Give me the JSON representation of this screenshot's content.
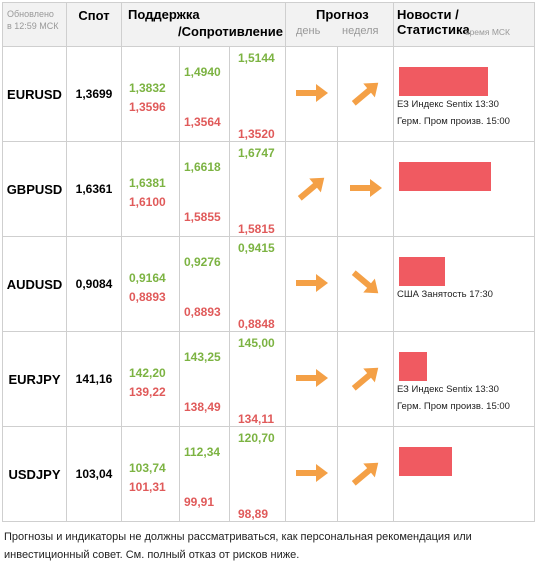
{
  "header": {
    "updated_line1": "Обновлено",
    "updated_line2": "в 12:59 МСК",
    "spot": "Спот",
    "support": "Поддержка",
    "resistance": "/Сопротивление",
    "forecast": "Прогноз",
    "day": "день",
    "week": "неделя",
    "news": "Новости / Статистика",
    "news_sub": "время МСК"
  },
  "rows": [
    {
      "symbol": "EURUSD",
      "spot": "1,3699",
      "s1": "1,3832",
      "s2": "1,3596",
      "m1": "1,4940",
      "m2": "1,3564",
      "h1": "1,5144",
      "h2": "1,3520",
      "day_dir": "right",
      "week_dir": "up-right",
      "bar_pct": 0.85,
      "news": [
        "ЕЗ Индекс Sentix 13:30",
        "Герм. Пром произв. 15:00"
      ]
    },
    {
      "symbol": "GBPUSD",
      "spot": "1,6361",
      "s1": "1,6381",
      "s2": "1,6100",
      "m1": "1,6618",
      "m2": "1,5855",
      "h1": "1,6747",
      "h2": "1,5815",
      "day_dir": "up-right",
      "week_dir": "right",
      "bar_pct": 0.88,
      "news": []
    },
    {
      "symbol": "AUDUSD",
      "spot": "0,9084",
      "s1": "0,9164",
      "s2": "0,8893",
      "m1": "0,9276",
      "m2": "0,8893",
      "h1": "0,9415",
      "h2": "0,8848",
      "day_dir": "right",
      "week_dir": "down-right",
      "bar_pct": 0.44,
      "news": [
        "США Занятость 17:30"
      ]
    },
    {
      "symbol": "EURJPY",
      "spot": "141,16",
      "s1": "142,20",
      "s2": "139,22",
      "m1": "143,25",
      "m2": "138,49",
      "h1": "145,00",
      "h2": "134,11",
      "day_dir": "right",
      "week_dir": "up-right",
      "bar_pct": 0.27,
      "news": [
        "ЕЗ Индекс Sentix 13:30",
        "Герм. Пром произв. 15:00"
      ]
    },
    {
      "symbol": "USDJPY",
      "spot": "103,04",
      "s1": "103,74",
      "s2": "101,31",
      "m1": "112,34",
      "m2": "99,91",
      "h1": "120,70",
      "h2": "98,89",
      "day_dir": "right",
      "week_dir": "up-right",
      "bar_pct": 0.5,
      "news": []
    }
  ],
  "colors": {
    "support_green": "#7cb342",
    "resist_red": "#e05a5a",
    "arrow": "#f4a046",
    "bar": "#f05a61"
  },
  "disclaimer_line1": "Прогнозы и индикаторы не должны рассматриваться, как персональная рекомендация или",
  "disclaimer_line2": "инвестиционный совет. См. полный отказ от рисков ниже."
}
